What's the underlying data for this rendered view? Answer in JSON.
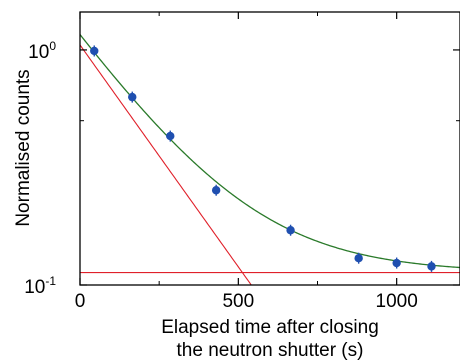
{
  "chart_data": {
    "type": "scatter",
    "title": "",
    "xlabel_line1": "Elapsed time after closing",
    "xlabel_line2": "the neutron shutter (s)",
    "ylabel": "Normalised counts",
    "xlim": [
      0,
      1200
    ],
    "ylim": [
      0.1,
      1.45
    ],
    "yscale": "log",
    "x_tick_labels": [
      "0",
      "500",
      "1000"
    ],
    "x_tick_values": [
      0,
      500,
      1000
    ],
    "y_tick_labels": [
      {
        "base": "10",
        "exp": "0",
        "value": 1.0
      },
      {
        "base": "10",
        "exp": "-1",
        "value": 0.1
      }
    ],
    "series": [
      {
        "kind": "points",
        "color": "#1f4fb0",
        "x": [
          45,
          165,
          285,
          430,
          665,
          880,
          1000,
          1110
        ],
        "y": [
          0.99,
          0.63,
          0.43,
          0.253,
          0.171,
          0.13,
          0.124,
          0.12
        ]
      },
      {
        "kind": "fit-curve",
        "color": "#2a7a2a",
        "model": "A*exp(-t/tau)+C",
        "params": {
          "A": 1.05,
          "tau": 230,
          "C": 0.113
        }
      },
      {
        "kind": "exponential-component",
        "color": "#e0202a",
        "model": "A*exp(-t/tau)",
        "params": {
          "A": 1.05,
          "tau": 230
        }
      },
      {
        "kind": "constant-background",
        "color": "#e0202a",
        "value": 0.113
      }
    ],
    "grid": false,
    "legend": "none"
  }
}
